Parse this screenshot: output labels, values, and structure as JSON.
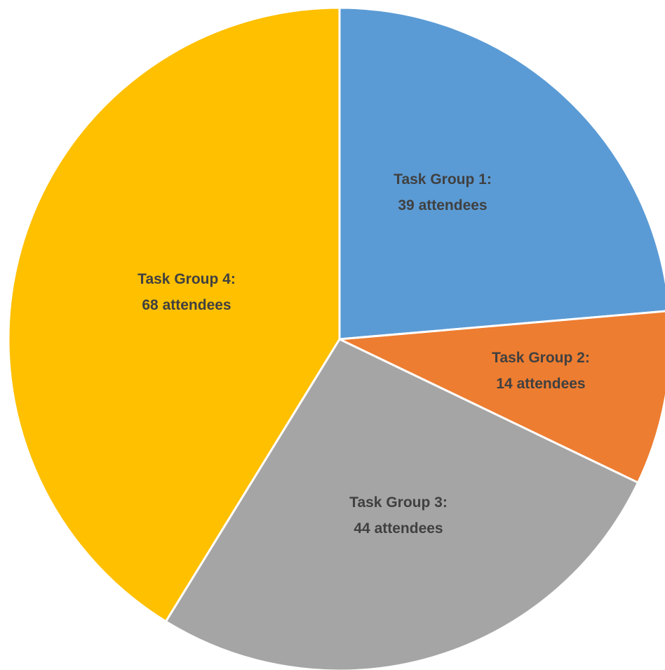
{
  "chart_data": {
    "type": "pie",
    "categories": [
      "Task Group 1",
      "Task Group 2",
      "Task Group 3",
      "Task Group 4"
    ],
    "values": [
      39,
      14,
      44,
      68
    ],
    "unit": "attendees",
    "start_angle_deg": 0,
    "direction": "clockwise",
    "colors": [
      "#5B9BD5",
      "#ED7D31",
      "#A5A5A5",
      "#FFC000"
    ],
    "labels": [
      {
        "line1": "Task Group 1:",
        "line2": "39 attendees"
      },
      {
        "line1": "Task Group 2:",
        "line2": "14 attendees"
      },
      {
        "line1": "Task Group 3:",
        "line2": "44 attendees"
      },
      {
        "line1": "Task Group 4:",
        "line2": "68 attendees"
      }
    ],
    "title": "",
    "legend": "none",
    "slice_separator_color": "#FFFFFF",
    "label_color": "#404040"
  }
}
